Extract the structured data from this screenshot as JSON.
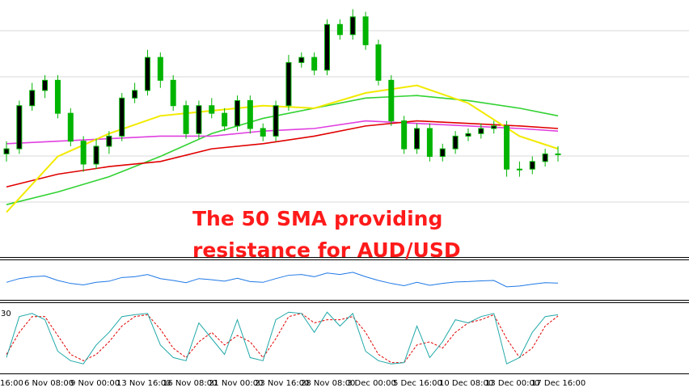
{
  "chart_data": {
    "type": "candlestick",
    "annotation": [
      "The 50 SMA providing",
      "resistance for AUD/USD"
    ],
    "x_labels": [
      "16:00",
      "6 Nov 08:00",
      "9 Nov 00:00",
      "13 Nov 16:00",
      "16 Nov 08:00",
      "21 Nov 00:00",
      "23 Nov 16:00",
      "28 Nov 08:00",
      "3 Dec 00:00",
      "5 Dec 16:00",
      "10 Dec 08:00",
      "13 Dec 00:00",
      "17 Dec 16:00"
    ],
    "ylim": [
      0,
      100
    ],
    "candle_color": "#00b400",
    "candles": [
      [
        40,
        45,
        37,
        42
      ],
      [
        42,
        61,
        40,
        59
      ],
      [
        59,
        68,
        57,
        65
      ],
      [
        65,
        71,
        62,
        69
      ],
      [
        69,
        71,
        54,
        56
      ],
      [
        56,
        58,
        43,
        45
      ],
      [
        45,
        47,
        33,
        36
      ],
      [
        36,
        46,
        34,
        43
      ],
      [
        43,
        49,
        40,
        47
      ],
      [
        47,
        64,
        45,
        62
      ],
      [
        62,
        68,
        60,
        65
      ],
      [
        65,
        81,
        63,
        78
      ],
      [
        78,
        80,
        66,
        69
      ],
      [
        69,
        71,
        57,
        59
      ],
      [
        59,
        61,
        46,
        48
      ],
      [
        48,
        61,
        46,
        59
      ],
      [
        59,
        62,
        54,
        56
      ],
      [
        56,
        58,
        49,
        51
      ],
      [
        51,
        63,
        49,
        61
      ],
      [
        61,
        63,
        48,
        50
      ],
      [
        50,
        52,
        45,
        47
      ],
      [
        47,
        61,
        45,
        59
      ],
      [
        59,
        79,
        57,
        76
      ],
      [
        76,
        80,
        74,
        78
      ],
      [
        78,
        80,
        71,
        73
      ],
      [
        73,
        93,
        71,
        91
      ],
      [
        91,
        93,
        85,
        87
      ],
      [
        87,
        97,
        85,
        94
      ],
      [
        94,
        96,
        81,
        83
      ],
      [
        83,
        85,
        67,
        69
      ],
      [
        69,
        71,
        51,
        53
      ],
      [
        53,
        55,
        40,
        42
      ],
      [
        42,
        52,
        40,
        50
      ],
      [
        50,
        52,
        37,
        39
      ],
      [
        39,
        44,
        37,
        42
      ],
      [
        42,
        49,
        40,
        47
      ],
      [
        47,
        50,
        45,
        48
      ],
      [
        48,
        52,
        46,
        50
      ],
      [
        50,
        53,
        48,
        51
      ],
      [
        51,
        53,
        31,
        34
      ],
      [
        34,
        37,
        31,
        34
      ],
      [
        34,
        39,
        32,
        37
      ],
      [
        37,
        42,
        35,
        40
      ],
      [
        40,
        43,
        37,
        40
      ]
    ],
    "ma_x": [
      0,
      4,
      8,
      12,
      16,
      20,
      24,
      28,
      32,
      36,
      40,
      43
    ],
    "moving_averages": [
      {
        "color": "#32d232",
        "values": [
          20,
          25,
          31,
          39,
          48,
          54,
          58,
          62,
          63,
          61,
          58,
          55
        ]
      },
      {
        "color": "#e040e0",
        "values": [
          44,
          45,
          46,
          47,
          47,
          49,
          50,
          53,
          52,
          51,
          50,
          49
        ]
      },
      {
        "color": "#e00000",
        "values": [
          27,
          32,
          35,
          37,
          42,
          44,
          47,
          51,
          53,
          52,
          51,
          50
        ]
      },
      {
        "color": "#f2ea00",
        "values": [
          17,
          39,
          48,
          55,
          57,
          59,
          58,
          64,
          67,
          60,
          47,
          42
        ]
      }
    ],
    "rsi": {
      "color": "#1e78e6",
      "ylim": [
        0,
        100
      ],
      "values": [
        45,
        55,
        60,
        62,
        50,
        42,
        38,
        45,
        48,
        58,
        60,
        66,
        55,
        50,
        44,
        55,
        52,
        48,
        56,
        47,
        45,
        55,
        64,
        66,
        60,
        70,
        66,
        72,
        60,
        50,
        42,
        36,
        45,
        37,
        42,
        46,
        47,
        49,
        50,
        33,
        35,
        40,
        44,
        43
      ]
    },
    "stochastic": {
      "level_label": "30",
      "ylim": [
        0,
        100
      ],
      "main": {
        "color": "#20a8a8",
        "values": [
          20,
          85,
          90,
          80,
          30,
          15,
          10,
          40,
          60,
          85,
          88,
          90,
          40,
          20,
          15,
          75,
          50,
          25,
          80,
          20,
          15,
          80,
          92,
          90,
          60,
          92,
          70,
          90,
          30,
          15,
          10,
          12,
          70,
          20,
          45,
          80,
          75,
          85,
          90,
          10,
          20,
          60,
          85,
          88
        ]
      },
      "signal": {
        "color": "#e00000",
        "values": [
          25,
          60,
          85,
          85,
          55,
          25,
          15,
          25,
          45,
          70,
          85,
          88,
          65,
          35,
          20,
          45,
          60,
          40,
          55,
          45,
          20,
          50,
          85,
          90,
          75,
          80,
          80,
          85,
          60,
          25,
          12,
          12,
          40,
          45,
          35,
          60,
          75,
          80,
          88,
          50,
          20,
          35,
          70,
          86
        ]
      }
    }
  }
}
